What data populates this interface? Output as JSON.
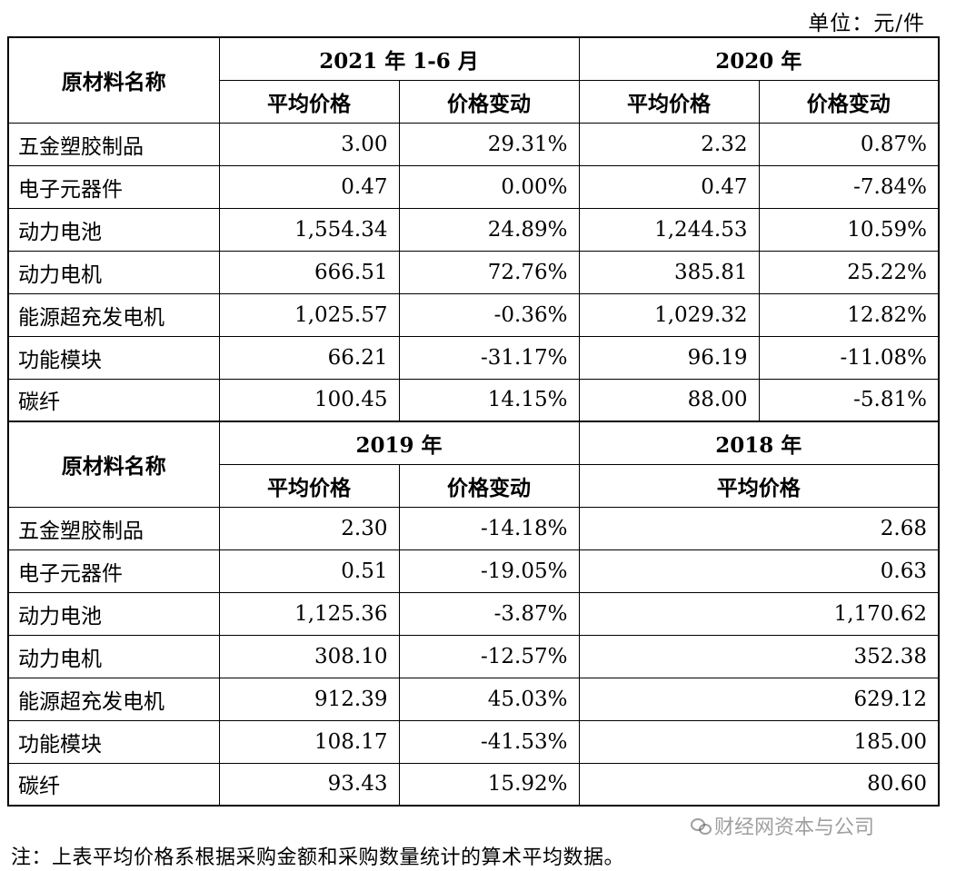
{
  "unit_label": "单位：元/件",
  "section1": {
    "name_header": "原材料名称",
    "periods": [
      "2021 年 1-6 月",
      "2020 年"
    ],
    "sub_headers": [
      "平均价格",
      "价格变动",
      "平均价格",
      "价格变动"
    ],
    "rows": [
      {
        "name": "五金塑胶制品",
        "c1": "3.00",
        "c2": "29.31%",
        "c3": "2.32",
        "c4": "0.87%"
      },
      {
        "name": "电子元器件",
        "c1": "0.47",
        "c2": "0.00%",
        "c3": "0.47",
        "c4": "-7.84%"
      },
      {
        "name": "动力电池",
        "c1": "1,554.34",
        "c2": "24.89%",
        "c3": "1,244.53",
        "c4": "10.59%"
      },
      {
        "name": "动力电机",
        "c1": "666.51",
        "c2": "72.76%",
        "c3": "385.81",
        "c4": "25.22%"
      },
      {
        "name": "能源超充发电机",
        "c1": "1,025.57",
        "c2": "-0.36%",
        "c3": "1,029.32",
        "c4": "12.82%"
      },
      {
        "name": "功能模块",
        "c1": "66.21",
        "c2": "-31.17%",
        "c3": "96.19",
        "c4": "-11.08%"
      },
      {
        "name": "碳纤",
        "c1": "100.45",
        "c2": "14.15%",
        "c3": "88.00",
        "c4": "-5.81%"
      }
    ]
  },
  "section2": {
    "name_header": "原材料名称",
    "periods": [
      "2019 年",
      "2018 年"
    ],
    "sub_headers": [
      "平均价格",
      "价格变动",
      "平均价格"
    ],
    "rows": [
      {
        "name": "五金塑胶制品",
        "c1": "2.30",
        "c2": "-14.18%",
        "c3": "2.68"
      },
      {
        "name": "电子元器件",
        "c1": "0.51",
        "c2": "-19.05%",
        "c3": "0.63"
      },
      {
        "name": "动力电池",
        "c1": "1,125.36",
        "c2": "-3.87%",
        "c3": "1,170.62"
      },
      {
        "name": "动力电机",
        "c1": "308.10",
        "c2": "-12.57%",
        "c3": "352.38"
      },
      {
        "name": "能源超充发电机",
        "c1": "912.39",
        "c2": "45.03%",
        "c3": "629.12"
      },
      {
        "name": "功能模块",
        "c1": "108.17",
        "c2": "-41.53%",
        "c3": "185.00"
      },
      {
        "name": "碳纤",
        "c1": "93.43",
        "c2": "15.92%",
        "c3": "80.60"
      }
    ]
  },
  "note": "注：上表平均价格系根据采购金额和采购数量统计的算术平均数据。",
  "watermark": "财经网资本与公司"
}
